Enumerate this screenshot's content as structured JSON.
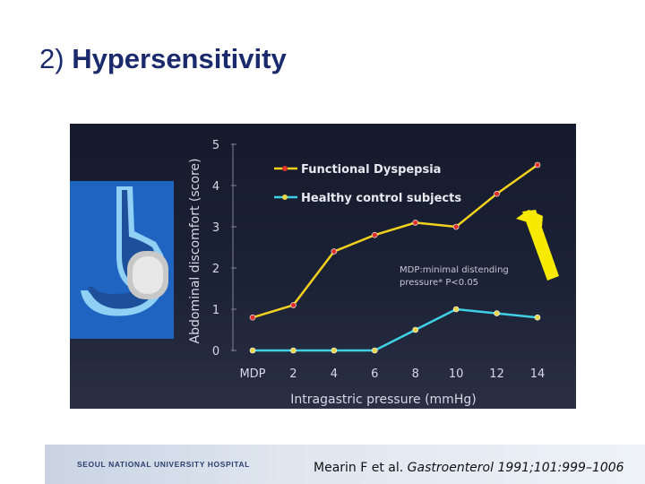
{
  "slide": {
    "title_number": "2)",
    "title_text": "Hypersensitivity"
  },
  "footer": {
    "hospital": "SEOUL NATIONAL UNIVERSITY HOSPITAL",
    "citation_authors": "Mearin F et al. ",
    "citation_journal": "Gastroenterol 1991;101:999–1006"
  },
  "annotation": {
    "line1": "MDP:minimal distending",
    "line2": "pressure* P<0.05"
  },
  "colors": {
    "dyspepsia_line": "#f2d21e",
    "dyspepsia_marker": "#e0302a",
    "control_line": "#3fd0e6",
    "control_marker": "#e8d64a",
    "arrow": "#f7ea00",
    "stomach_panel": "#1f64c0"
  },
  "chart_data": {
    "type": "line",
    "xlabel": "Intragastric pressure (mmHg)",
    "ylabel": "Abdominal discomfort (score)",
    "categories": [
      "MDP",
      "2",
      "4",
      "6",
      "8",
      "10",
      "12",
      "14"
    ],
    "ylim": [
      0,
      5
    ],
    "yticks": [
      "0",
      "1",
      "2",
      "3",
      "4",
      "5"
    ],
    "grid": false,
    "legend_position": "top-left",
    "series": [
      {
        "name": "Functional Dyspepsia",
        "values": [
          0.8,
          1.1,
          2.4,
          2.8,
          3.1,
          3.0,
          3.8,
          4.5
        ]
      },
      {
        "name": "Healthy control subjects",
        "values": [
          0,
          0,
          0,
          0,
          0.5,
          1.0,
          0.9,
          0.8
        ]
      }
    ]
  }
}
